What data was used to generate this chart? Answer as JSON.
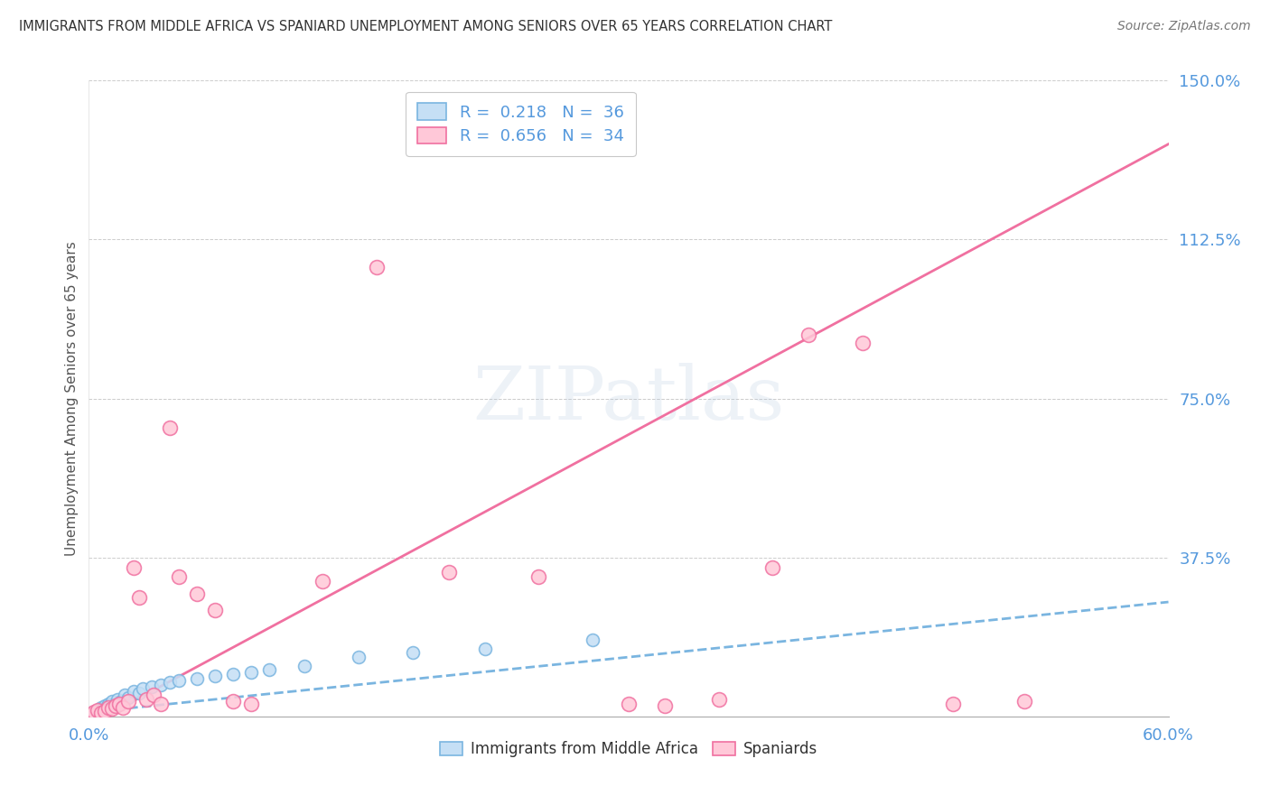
{
  "title": "IMMIGRANTS FROM MIDDLE AFRICA VS SPANIARD UNEMPLOYMENT AMONG SENIORS OVER 65 YEARS CORRELATION CHART",
  "source": "Source: ZipAtlas.com",
  "ylabel": "Unemployment Among Seniors over 65 years",
  "xlim": [
    0.0,
    0.6
  ],
  "ylim": [
    0.0,
    1.5
  ],
  "xticks": [
    0.0,
    0.1,
    0.2,
    0.3,
    0.4,
    0.5,
    0.6
  ],
  "xticklabels": [
    "0.0%",
    "",
    "",
    "",
    "",
    "",
    "60.0%"
  ],
  "yticks_right": [
    0.0,
    0.375,
    0.75,
    1.125,
    1.5
  ],
  "yticklabels_right": [
    "",
    "37.5%",
    "75.0%",
    "112.5%",
    "150.0%"
  ],
  "legend_r1": "R =  0.218   N =  36",
  "legend_r2": "R =  0.656   N =  34",
  "blue_scatter_x": [
    0.001,
    0.002,
    0.003,
    0.004,
    0.005,
    0.006,
    0.007,
    0.008,
    0.009,
    0.01,
    0.011,
    0.012,
    0.013,
    0.014,
    0.015,
    0.016,
    0.018,
    0.02,
    0.022,
    0.025,
    0.028,
    0.03,
    0.035,
    0.04,
    0.045,
    0.05,
    0.06,
    0.07,
    0.08,
    0.09,
    0.1,
    0.12,
    0.15,
    0.18,
    0.22,
    0.28
  ],
  "blue_scatter_y": [
    0.005,
    0.008,
    0.01,
    0.012,
    0.015,
    0.01,
    0.02,
    0.018,
    0.025,
    0.022,
    0.03,
    0.028,
    0.035,
    0.025,
    0.03,
    0.04,
    0.035,
    0.05,
    0.045,
    0.06,
    0.055,
    0.065,
    0.07,
    0.075,
    0.08,
    0.085,
    0.09,
    0.095,
    0.1,
    0.105,
    0.11,
    0.12,
    0.14,
    0.15,
    0.16,
    0.18
  ],
  "pink_scatter_x": [
    0.001,
    0.003,
    0.005,
    0.007,
    0.009,
    0.011,
    0.013,
    0.015,
    0.017,
    0.019,
    0.022,
    0.025,
    0.028,
    0.032,
    0.036,
    0.04,
    0.045,
    0.05,
    0.06,
    0.07,
    0.08,
    0.09,
    0.13,
    0.16,
    0.2,
    0.25,
    0.3,
    0.32,
    0.35,
    0.38,
    0.4,
    0.43,
    0.48,
    0.52
  ],
  "pink_scatter_y": [
    0.005,
    0.01,
    0.015,
    0.008,
    0.012,
    0.02,
    0.018,
    0.025,
    0.03,
    0.022,
    0.035,
    0.35,
    0.28,
    0.04,
    0.05,
    0.03,
    0.68,
    0.33,
    0.29,
    0.25,
    0.035,
    0.03,
    0.32,
    1.06,
    0.34,
    0.33,
    0.03,
    0.025,
    0.04,
    0.35,
    0.9,
    0.88,
    0.03,
    0.035
  ],
  "blue_trend_x": [
    0.0,
    0.6
  ],
  "blue_trend_y": [
    0.01,
    0.27
  ],
  "pink_trend_x": [
    0.0,
    0.6
  ],
  "pink_trend_y": [
    -0.02,
    1.35
  ],
  "figsize": [
    14.06,
    8.92
  ],
  "dpi": 100
}
